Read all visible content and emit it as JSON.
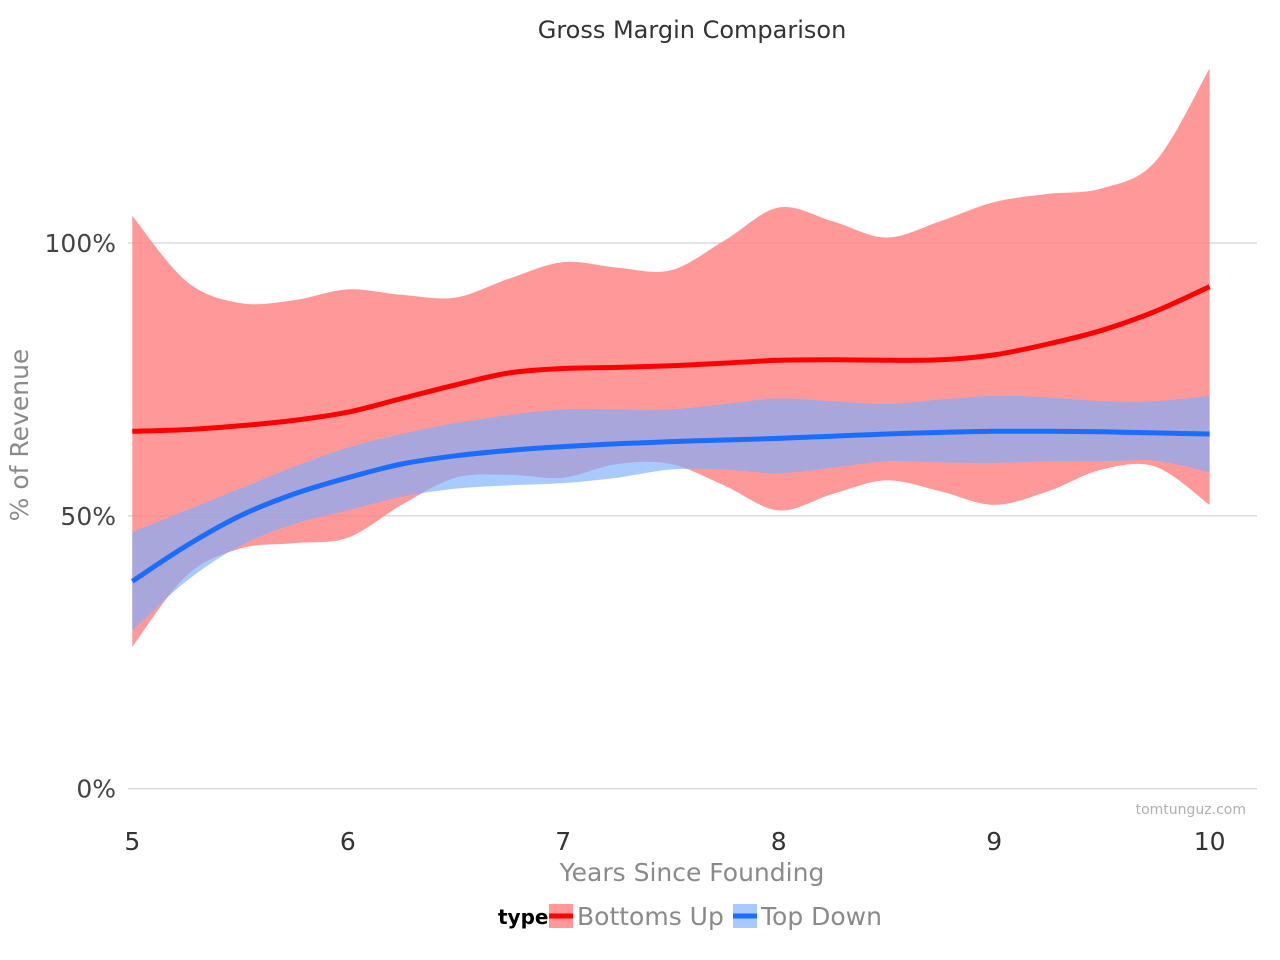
{
  "chart_data": {
    "type": "line",
    "title": "Gross Margin Comparison",
    "xlabel": "Years Since Founding",
    "ylabel": "% of Revenue",
    "xlim": [
      4.98,
      10.22
    ],
    "ylim": [
      -0.05,
      1.35
    ],
    "x_ticks": [
      {
        "value": 5,
        "label": "5"
      },
      {
        "value": 6,
        "label": "6"
      },
      {
        "value": 7,
        "label": "7"
      },
      {
        "value": 8,
        "label": "8"
      },
      {
        "value": 9,
        "label": "9"
      },
      {
        "value": 10,
        "label": "10"
      }
    ],
    "y_ticks": [
      {
        "value": 0,
        "label": "0%"
      },
      {
        "value": 0.5,
        "label": "50%"
      },
      {
        "value": 1.0,
        "label": "100%"
      }
    ],
    "grid": "horizontal",
    "legend": {
      "title": "type",
      "placement": "bottom"
    },
    "watermark": "tomtunguz.com",
    "series": [
      {
        "name": "Bottoms Up",
        "line_color": "#ff0000",
        "band_color": "#ff8080",
        "band_opacity": 0.8,
        "x": [
          5,
          5.25,
          5.5,
          5.75,
          6,
          6.25,
          6.5,
          6.75,
          7,
          7.25,
          7.5,
          7.75,
          8,
          8.25,
          8.5,
          8.75,
          9,
          9.25,
          9.5,
          9.75,
          10
        ],
        "y": [
          0.655,
          0.658,
          0.665,
          0.675,
          0.69,
          0.715,
          0.74,
          0.762,
          0.77,
          0.772,
          0.775,
          0.78,
          0.785,
          0.786,
          0.785,
          0.786,
          0.795,
          0.815,
          0.84,
          0.875,
          0.92
        ],
        "upper": [
          1.05,
          0.93,
          0.89,
          0.895,
          0.915,
          0.905,
          0.9,
          0.935,
          0.965,
          0.955,
          0.95,
          1.005,
          1.065,
          1.04,
          1.01,
          1.04,
          1.075,
          1.09,
          1.1,
          1.15,
          1.32
        ],
        "lower": [
          0.26,
          0.39,
          0.44,
          0.45,
          0.46,
          0.52,
          0.57,
          0.575,
          0.57,
          0.595,
          0.595,
          0.555,
          0.51,
          0.54,
          0.565,
          0.545,
          0.52,
          0.545,
          0.585,
          0.59,
          0.52
        ]
      },
      {
        "name": "Top Down",
        "line_color": "#1a6dff",
        "band_color": "#7aaeff",
        "band_opacity": 0.65,
        "x": [
          5,
          5.25,
          5.5,
          5.75,
          6,
          6.25,
          6.5,
          6.75,
          7,
          7.25,
          7.5,
          7.75,
          8,
          8.25,
          8.5,
          8.75,
          9,
          9.25,
          9.5,
          9.75,
          10
        ],
        "y": [
          0.38,
          0.445,
          0.5,
          0.54,
          0.57,
          0.595,
          0.61,
          0.62,
          0.627,
          0.632,
          0.636,
          0.639,
          0.642,
          0.646,
          0.65,
          0.653,
          0.655,
          0.655,
          0.654,
          0.652,
          0.65
        ],
        "upper": [
          0.47,
          0.51,
          0.55,
          0.59,
          0.625,
          0.65,
          0.67,
          0.685,
          0.695,
          0.695,
          0.695,
          0.705,
          0.715,
          0.71,
          0.705,
          0.713,
          0.72,
          0.717,
          0.71,
          0.71,
          0.72
        ],
        "lower": [
          0.29,
          0.38,
          0.445,
          0.485,
          0.51,
          0.535,
          0.55,
          0.556,
          0.56,
          0.57,
          0.585,
          0.585,
          0.578,
          0.588,
          0.6,
          0.598,
          0.597,
          0.6,
          0.6,
          0.601,
          0.58
        ]
      }
    ]
  }
}
